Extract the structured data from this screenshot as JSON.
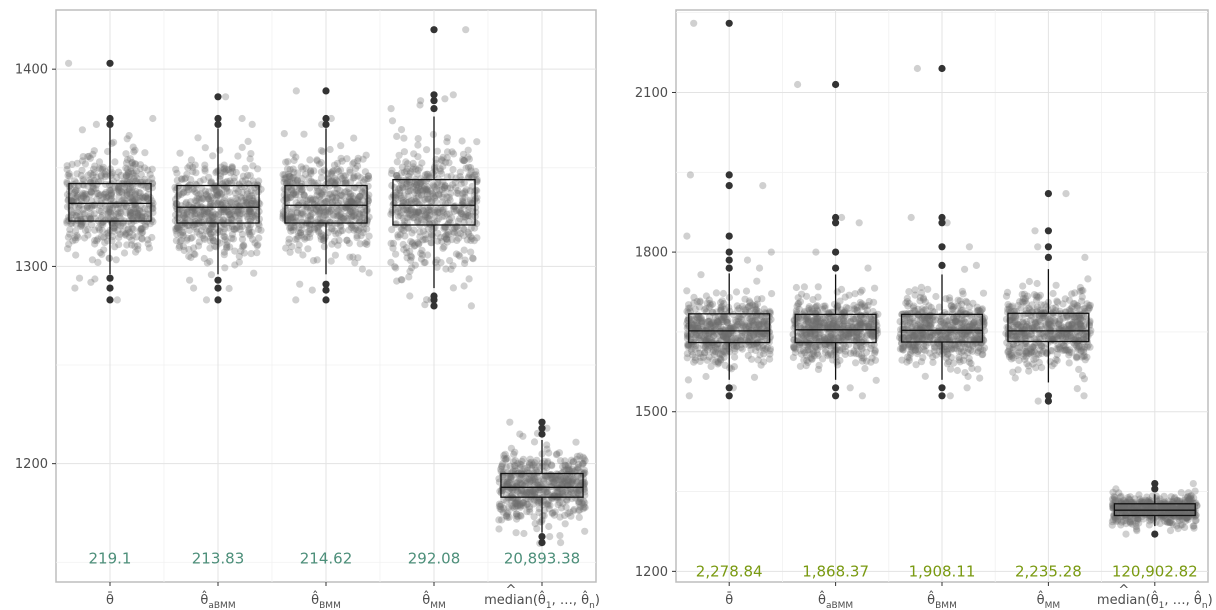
{
  "chart_data": [
    {
      "type": "scatter",
      "title": "",
      "xlabel": "",
      "ylabel": "",
      "ylim": [
        1140,
        1430
      ],
      "yticks": [
        1200,
        1300,
        1400
      ],
      "grid": true,
      "categories": [
        "θ̄",
        "θ̂_aBMM",
        "θ̂_BMM",
        "θ̂_MM",
        "median(θ̂_1, …, θ̂_n)"
      ],
      "annotation_color": "#4d8f7a",
      "annotation_y": 1152,
      "annotations": [
        "219.1",
        "213.83",
        "214.62",
        "292.08",
        "20,893.38"
      ],
      "boxes": [
        {
          "q1": 1323,
          "median": 1332,
          "q3": 1342,
          "whisker_low": 1296,
          "whisker_high": 1371,
          "outliers": [
            1283,
            1289,
            1294,
            1372,
            1375,
            1403
          ],
          "spread": 12
        },
        {
          "q1": 1322,
          "median": 1330,
          "q3": 1341,
          "whisker_low": 1296,
          "whisker_high": 1370,
          "outliers": [
            1283,
            1289,
            1293,
            1372,
            1375,
            1386
          ],
          "spread": 12
        },
        {
          "q1": 1322,
          "median": 1331,
          "q3": 1341,
          "whisker_low": 1296,
          "whisker_high": 1370,
          "outliers": [
            1283,
            1288,
            1291,
            1372,
            1375,
            1389
          ],
          "spread": 12
        },
        {
          "q1": 1321,
          "median": 1331,
          "q3": 1344,
          "whisker_low": 1289,
          "whisker_high": 1376,
          "outliers": [
            1280,
            1283,
            1285,
            1380,
            1384,
            1387,
            1420
          ],
          "spread": 15
        },
        {
          "q1": 1183,
          "median": 1188,
          "q3": 1195,
          "whisker_low": 1165,
          "whisker_high": 1212,
          "outliers": [
            1160,
            1163,
            1215,
            1218,
            1221
          ],
          "spread": 9
        }
      ]
    },
    {
      "type": "scatter",
      "title": "",
      "xlabel": "",
      "ylabel": "",
      "ylim": [
        1180,
        2255
      ],
      "yticks": [
        1200,
        1500,
        1800,
        2100
      ],
      "grid": true,
      "categories": [
        "θ̄",
        "θ̂_aBMM",
        "θ̂_BMM",
        "θ̂_MM",
        "median(θ̂_1, …, θ̂_n)"
      ],
      "annotation_color": "#7a9a12",
      "annotation_y": 1200,
      "annotations": [
        "2,278.84",
        "1,868.37",
        "1,908.11",
        "2,235.28",
        "120,902.82"
      ],
      "boxes": [
        {
          "q1": 1630,
          "median": 1652,
          "q3": 1684,
          "whisker_low": 1560,
          "whisker_high": 1760,
          "outliers": [
            1530,
            1545,
            1770,
            1785,
            1800,
            1830,
            1925,
            1945,
            2230
          ],
          "spread": 30
        },
        {
          "q1": 1630,
          "median": 1654,
          "q3": 1683,
          "whisker_low": 1560,
          "whisker_high": 1758,
          "outliers": [
            1530,
            1545,
            1770,
            1800,
            1855,
            1865,
            2115
          ],
          "spread": 30
        },
        {
          "q1": 1631,
          "median": 1653,
          "q3": 1683,
          "whisker_low": 1560,
          "whisker_high": 1758,
          "outliers": [
            1530,
            1545,
            1775,
            1810,
            1855,
            1865,
            2145
          ],
          "spread": 30
        },
        {
          "q1": 1632,
          "median": 1652,
          "q3": 1685,
          "whisker_low": 1555,
          "whisker_high": 1768,
          "outliers": [
            1520,
            1530,
            1790,
            1810,
            1840,
            1910
          ],
          "spread": 33
        },
        {
          "q1": 1305,
          "median": 1315,
          "q3": 1327,
          "whisker_low": 1285,
          "whisker_high": 1345,
          "outliers": [
            1270,
            1355,
            1365
          ],
          "spread": 14
        }
      ]
    }
  ]
}
